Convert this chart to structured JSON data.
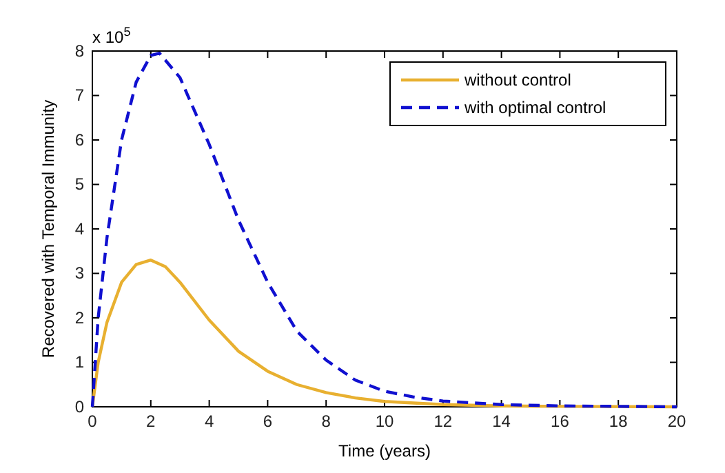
{
  "chart_data": {
    "type": "line",
    "xlabel": "Time (years)",
    "ylabel": "Recovered with Temporal Immunity",
    "annotations": [
      "x 10$^{5}$"
    ],
    "xlim": [
      0,
      20
    ],
    "xticks": [
      0,
      2,
      4,
      6,
      8,
      10,
      12,
      14,
      16,
      18,
      20
    ],
    "ylim": [
      0,
      8
    ],
    "yticks": [
      0,
      1,
      2,
      3,
      4,
      5,
      6,
      7,
      8
    ],
    "grid": false,
    "legend": "top right",
    "series": [
      {
        "name": "without control",
        "color": "#e8b030",
        "line_style": "solid",
        "x": [
          0,
          0.2,
          0.5,
          1,
          1.5,
          2,
          2.5,
          3,
          4,
          5,
          6,
          7,
          8,
          9,
          10,
          12,
          14,
          16,
          20
        ],
        "values": [
          0,
          1.0,
          1.9,
          2.8,
          3.2,
          3.3,
          3.15,
          2.8,
          1.95,
          1.25,
          0.8,
          0.5,
          0.32,
          0.2,
          0.12,
          0.05,
          0.02,
          0.01,
          0
        ]
      },
      {
        "name": "with optimal control",
        "color": "#1010d0",
        "line_style": "dashed",
        "x": [
          0,
          0.2,
          0.5,
          1,
          1.5,
          2,
          2.3,
          3,
          4,
          5,
          6,
          7,
          8,
          9,
          10,
          11,
          12,
          14,
          16,
          20
        ],
        "values": [
          0,
          2.0,
          3.8,
          6.0,
          7.3,
          7.9,
          7.95,
          7.4,
          5.9,
          4.2,
          2.8,
          1.7,
          1.05,
          0.6,
          0.35,
          0.22,
          0.13,
          0.05,
          0.02,
          0
        ]
      }
    ]
  }
}
